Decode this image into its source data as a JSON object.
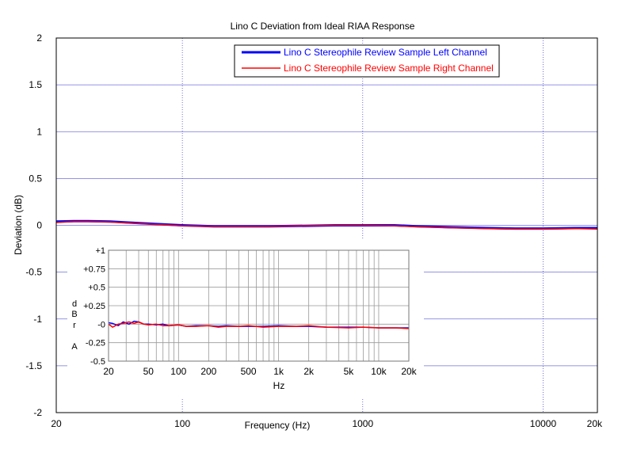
{
  "chart_data": [
    {
      "type": "line",
      "title": "Lino C Deviation from Ideal RIAA Response",
      "xlabel": "Frequency (Hz)",
      "ylabel": "Deviation (dB)",
      "xscale": "log",
      "xlim": [
        20,
        20000
      ],
      "ylim": [
        -2,
        2
      ],
      "x_ticks": [
        20,
        100,
        1000,
        10000,
        20000
      ],
      "x_tick_labels": [
        "20",
        "100",
        "1000",
        "10000",
        "20k"
      ],
      "y_ticks": [
        -2,
        -1.5,
        -1,
        -0.5,
        0,
        0.5,
        1,
        1.5,
        2
      ],
      "y_tick_labels": [
        "-2",
        "-1.5",
        "-1",
        "-0.5",
        "0",
        "0.5",
        "1",
        "1.5",
        "2"
      ],
      "grid": true,
      "legend_position": "top-center",
      "series": [
        {
          "name": "Lino C Stereophile Review Sample Left Channel",
          "color": "#0000ff",
          "x": [
            20,
            25,
            30,
            40,
            50,
            70,
            100,
            150,
            200,
            300,
            500,
            700,
            1000,
            1500,
            2000,
            3000,
            5000,
            7000,
            10000,
            15000,
            20000
          ],
          "y": [
            0.04,
            0.045,
            0.045,
            0.04,
            0.03,
            0.015,
            0.0,
            -0.01,
            -0.01,
            -0.01,
            -0.005,
            0.0,
            0.0,
            0.0,
            -0.01,
            -0.02,
            -0.03,
            -0.035,
            -0.035,
            -0.03,
            -0.03
          ]
        },
        {
          "name": "Lino C Stereophile Review Sample Right Channel",
          "color": "#ff0000",
          "x": [
            20,
            25,
            30,
            40,
            50,
            70,
            100,
            150,
            200,
            300,
            500,
            700,
            1000,
            1500,
            2000,
            3000,
            5000,
            7000,
            10000,
            15000,
            20000
          ],
          "y": [
            0.03,
            0.04,
            0.04,
            0.035,
            0.025,
            0.01,
            -0.005,
            -0.01,
            -0.01,
            -0.01,
            -0.005,
            0.0,
            0.0,
            -0.005,
            -0.015,
            -0.025,
            -0.035,
            -0.04,
            -0.04,
            -0.035,
            -0.04
          ]
        }
      ]
    },
    {
      "type": "line",
      "title": "",
      "xlabel": "Hz",
      "ylabel": "dBr A",
      "ylabel_chars": [
        "d",
        "B",
        "r",
        "A"
      ],
      "xscale": "log",
      "xlim": [
        20,
        20000
      ],
      "ylim": [
        -0.5,
        1
      ],
      "x_ticks": [
        20,
        50,
        100,
        200,
        500,
        1000,
        2000,
        5000,
        10000,
        20000
      ],
      "x_tick_labels": [
        "20",
        "50",
        "100",
        "200",
        "500",
        "1k",
        "2k",
        "5k",
        "10k",
        "20k"
      ],
      "y_ticks": [
        -0.5,
        -0.25,
        0,
        0.25,
        0.5,
        0.75,
        1
      ],
      "y_tick_labels": [
        "-0.5",
        "-0.25",
        "-0",
        "+0.25",
        "+0.5",
        "+0.75",
        "+1"
      ],
      "grid": true,
      "series": [
        {
          "color": "#0000ff",
          "x": [
            20,
            22,
            25,
            28,
            32,
            36,
            40,
            45,
            50,
            60,
            70,
            80,
            100,
            120,
            150,
            200,
            250,
            300,
            400,
            500,
            700,
            1000,
            1500,
            2000,
            3000,
            5000,
            7000,
            10000,
            15000,
            20000
          ],
          "y": [
            0.02,
            0.01,
            -0.02,
            0.03,
            0.0,
            0.04,
            0.03,
            0.0,
            0.0,
            -0.01,
            0.0,
            -0.02,
            -0.01,
            -0.03,
            -0.02,
            -0.02,
            -0.03,
            -0.02,
            -0.03,
            -0.03,
            -0.03,
            -0.02,
            -0.03,
            -0.03,
            -0.04,
            -0.04,
            -0.04,
            -0.05,
            -0.05,
            -0.05
          ]
        },
        {
          "color": "#ff0000",
          "x": [
            20,
            22,
            25,
            28,
            32,
            36,
            40,
            45,
            50,
            60,
            70,
            80,
            100,
            120,
            150,
            200,
            250,
            300,
            400,
            500,
            700,
            1000,
            1500,
            2000,
            3000,
            5000,
            7000,
            10000,
            15000,
            20000
          ],
          "y": [
            0.0,
            -0.04,
            0.0,
            0.01,
            0.03,
            0.01,
            0.03,
            0.0,
            -0.01,
            0.0,
            -0.02,
            -0.02,
            -0.01,
            -0.03,
            -0.03,
            -0.02,
            -0.04,
            -0.03,
            -0.03,
            -0.02,
            -0.04,
            -0.03,
            -0.03,
            -0.02,
            -0.04,
            -0.05,
            -0.04,
            -0.05,
            -0.05,
            -0.06
          ]
        }
      ]
    }
  ]
}
